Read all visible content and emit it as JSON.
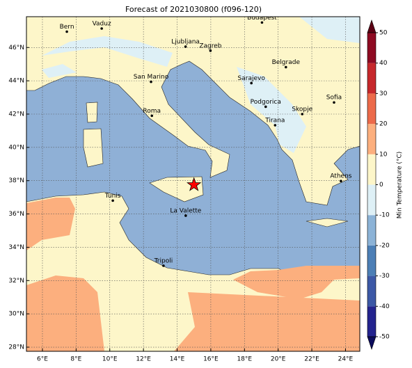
{
  "title": "Forecast of 2021030800 (f096-120)",
  "map": {
    "lonlim": [
      5.05,
      24.85
    ],
    "latlim": [
      27.75,
      47.85
    ],
    "lon_ticks": [
      {
        "value": 6,
        "label": "6°E"
      },
      {
        "value": 8,
        "label": "8°E"
      },
      {
        "value": 10,
        "label": "10°E"
      },
      {
        "value": 12,
        "label": "12°E"
      },
      {
        "value": 14,
        "label": "14°E"
      },
      {
        "value": 16,
        "label": "16°E"
      },
      {
        "value": 18,
        "label": "18°E"
      },
      {
        "value": 20,
        "label": "20°E"
      },
      {
        "value": 22,
        "label": "22°E"
      },
      {
        "value": 24,
        "label": "24°E"
      }
    ],
    "lat_ticks": [
      {
        "value": 28,
        "label": "28°N"
      },
      {
        "value": 30,
        "label": "30°N"
      },
      {
        "value": 32,
        "label": "32°N"
      },
      {
        "value": 34,
        "label": "34°N"
      },
      {
        "value": 36,
        "label": "36°N"
      },
      {
        "value": 38,
        "label": "38°N"
      },
      {
        "value": 40,
        "label": "40°N"
      },
      {
        "value": 42,
        "label": "42°N"
      },
      {
        "value": 44,
        "label": "44°N"
      },
      {
        "value": 46,
        "label": "46°N"
      }
    ],
    "grid": true,
    "cities": [
      {
        "name": "Bern",
        "lon": 7.45,
        "lat": 46.95
      },
      {
        "name": "Vaduz",
        "lon": 9.52,
        "lat": 47.14
      },
      {
        "name": "Budapest",
        "lon": 19.04,
        "lat": 47.5
      },
      {
        "name": "Ljubljana",
        "lon": 14.5,
        "lat": 46.05
      },
      {
        "name": "Zagreb",
        "lon": 15.98,
        "lat": 45.81
      },
      {
        "name": "Belgrade",
        "lon": 20.46,
        "lat": 44.82
      },
      {
        "name": "San Marino",
        "lon": 12.45,
        "lat": 43.94
      },
      {
        "name": "Sarajevo",
        "lon": 18.41,
        "lat": 43.86
      },
      {
        "name": "Sofia",
        "lon": 23.32,
        "lat": 42.7
      },
      {
        "name": "Roma",
        "lon": 12.5,
        "lat": 41.9
      },
      {
        "name": "Podgorica",
        "lon": 19.26,
        "lat": 42.44
      },
      {
        "name": "Skopje",
        "lon": 21.43,
        "lat": 42.0
      },
      {
        "name": "Tirana",
        "lon": 19.82,
        "lat": 41.33
      },
      {
        "name": "Athens",
        "lon": 23.73,
        "lat": 37.98
      },
      {
        "name": "Tunis",
        "lon": 10.18,
        "lat": 36.8
      },
      {
        "name": "La Valette",
        "lon": 14.51,
        "lat": 35.9
      },
      {
        "name": "Tripoli",
        "lon": 13.19,
        "lat": 32.89
      }
    ],
    "marker": {
      "lon": 15.0,
      "lat": 37.75,
      "color": "#ff0000"
    }
  },
  "colorbar": {
    "label": "Min Temperature (°C)",
    "lim": [
      -50,
      50
    ],
    "ticks": [
      -50,
      -40,
      -30,
      -20,
      -10,
      0,
      10,
      20,
      30,
      40,
      50
    ],
    "colors": [
      "#23238e",
      "#3c58a6",
      "#4c7fb6",
      "#8cb3d7",
      "#def0f6",
      "#fdf6c9",
      "#fcaf7e",
      "#ec6a4a",
      "#c6282c",
      "#8e0a22"
    ],
    "under": "#0c0c5c",
    "over": "#5c0014"
  }
}
